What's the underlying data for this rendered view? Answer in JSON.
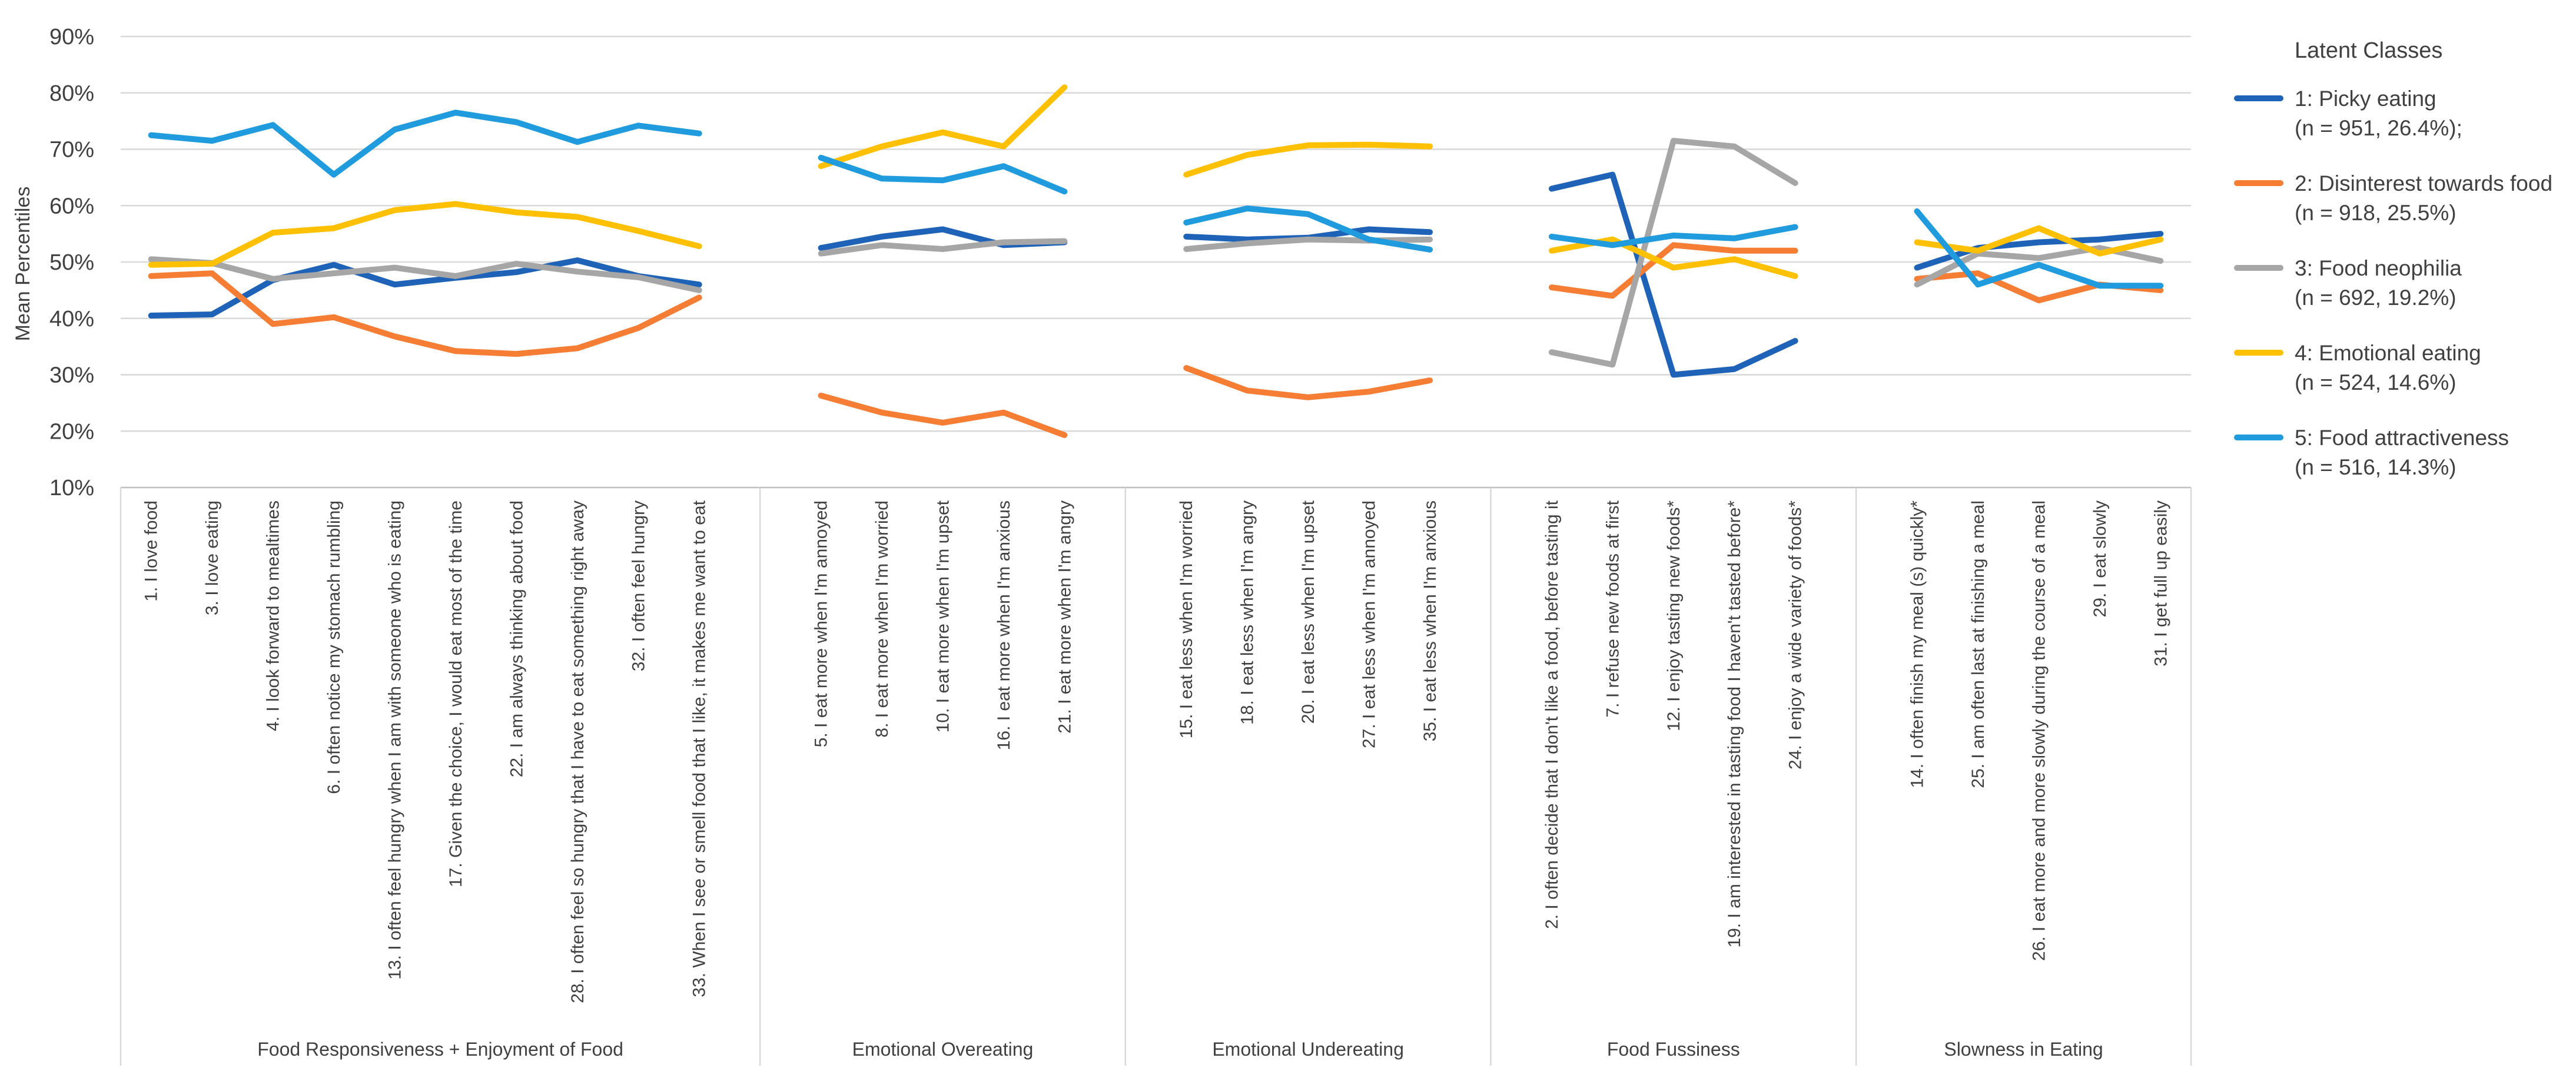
{
  "chart_data": {
    "type": "line",
    "ylabel": "Mean Percentiles",
    "xlabel": "",
    "ylim": [
      10,
      90
    ],
    "yticks": [
      "10%",
      "20%",
      "30%",
      "40%",
      "50%",
      "60%",
      "70%",
      "80%",
      "90%"
    ],
    "grid": "horizontal",
    "legend_placement": "right",
    "legend_title": "Latent Classes",
    "groups": [
      {
        "name": "Food Responsiveness + Enjoyment of Food",
        "items": [
          "1. I love food",
          "3. I love eating",
          "4. I look forward to mealtimes",
          "6. I often notice my stomach rumbling",
          "13. I often feel hungry when I am with someone who is eating",
          "17. Given the choice, I would eat most of the time",
          "22. I am always thinking about food",
          "28. I often feel so hungry that I have to eat something right away",
          "32. I often feel hungry",
          "33. When I see or smell food that I like, it makes me want to eat"
        ]
      },
      {
        "name": "Emotional Overeating",
        "items": [
          "5. I eat more when I'm annoyed",
          "8. I eat more when I'm worried",
          "10. I eat more when I'm upset",
          "16. I eat more when I'm anxious",
          "21. I eat more when I'm angry"
        ]
      },
      {
        "name": "Emotional Undereating",
        "items": [
          "15. I eat less when I'm worried",
          "18. I eat less when I'm angry",
          "20. I eat less when I'm upset",
          "27. I eat less when I'm annoyed",
          "35. I eat less when I'm anxious"
        ]
      },
      {
        "name": "Food Fussiness",
        "items": [
          "2. I often decide that I don't like a food, before tasting it",
          "7. I refuse new foods at first",
          "12. I enjoy tasting new foods*",
          "19. I am interested in tasting food I haven't tasted before*",
          "24. I enjoy a wide variety of foods*"
        ]
      },
      {
        "name": "Slowness in Eating",
        "items": [
          "14. I often finish my meal (s) quickly*",
          "25. I am often last at finishing a meal",
          "26. I eat more and more slowly during the course of a meal",
          "29. I eat slowly",
          "31. I get full up easily"
        ]
      }
    ],
    "series": [
      {
        "name": "1: Picky eating",
        "detail": "(n = 951, 26.4%);",
        "color": "#1f63b8",
        "values": [
          [
            40.5,
            40.7,
            46.8,
            49.5,
            46.0,
            47.2,
            48.2,
            50.3,
            47.5,
            46.0
          ],
          [
            52.5,
            54.5,
            55.8,
            53.0,
            53.5
          ],
          [
            54.5,
            54.0,
            54.3,
            55.8,
            55.3
          ],
          [
            63.0,
            65.5,
            30.0,
            31.0,
            36.0
          ],
          [
            49.0,
            52.5,
            53.5,
            54.0,
            55.0
          ]
        ]
      },
      {
        "name": "2: Disinterest towards food",
        "detail": "(n = 918, 25.5%)",
        "color": "#f57d34",
        "values": [
          [
            47.5,
            48.0,
            39.0,
            40.2,
            36.8,
            34.2,
            33.7,
            34.7,
            38.3,
            43.7
          ],
          [
            26.3,
            23.3,
            21.5,
            23.3,
            19.3
          ],
          [
            31.2,
            27.2,
            26.0,
            27.0,
            29.0
          ],
          [
            45.5,
            44.0,
            53.0,
            52.0,
            52.0
          ],
          [
            47.0,
            48.0,
            43.2,
            46.0,
            45.0
          ]
        ]
      },
      {
        "name": "3: Food neophilia",
        "detail": "(n = 692, 19.2%)",
        "color": "#a6a6a6",
        "values": [
          [
            50.5,
            49.8,
            47.0,
            48.0,
            49.0,
            47.5,
            49.7,
            48.3,
            47.3,
            45.0
          ],
          [
            51.5,
            53.0,
            52.3,
            53.5,
            53.7
          ],
          [
            52.3,
            53.3,
            54.0,
            53.8,
            54.0
          ],
          [
            34.0,
            31.8,
            71.5,
            70.5,
            64.0
          ],
          [
            46.0,
            51.5,
            50.7,
            52.5,
            50.2
          ]
        ]
      },
      {
        "name": "4: Emotional eating",
        "detail": "(n = 524, 14.6%)",
        "color": "#ffc000",
        "values": [
          [
            49.5,
            49.7,
            55.2,
            56.0,
            59.2,
            60.3,
            58.8,
            58.0,
            55.5,
            52.8
          ],
          [
            67.0,
            70.5,
            73.0,
            70.5,
            81.0
          ],
          [
            65.5,
            69.0,
            70.7,
            70.8,
            70.5
          ],
          [
            52.0,
            54.0,
            49.0,
            50.5,
            47.5
          ],
          [
            53.5,
            52.0,
            56.0,
            51.5,
            54.0
          ]
        ]
      },
      {
        "name": "5: Food attractiveness",
        "detail": "(n = 516, 14.3%)",
        "color": "#1f9bde",
        "values": [
          [
            72.5,
            71.5,
            74.3,
            65.5,
            73.5,
            76.5,
            74.8,
            71.3,
            74.2,
            72.8
          ],
          [
            68.5,
            64.8,
            64.5,
            67.0,
            62.5
          ],
          [
            57.0,
            59.5,
            58.5,
            54.0,
            52.2
          ],
          [
            54.5,
            53.0,
            54.7,
            54.2,
            56.2
          ],
          [
            59.0,
            46.0,
            49.5,
            45.8,
            45.8
          ]
        ]
      }
    ]
  }
}
